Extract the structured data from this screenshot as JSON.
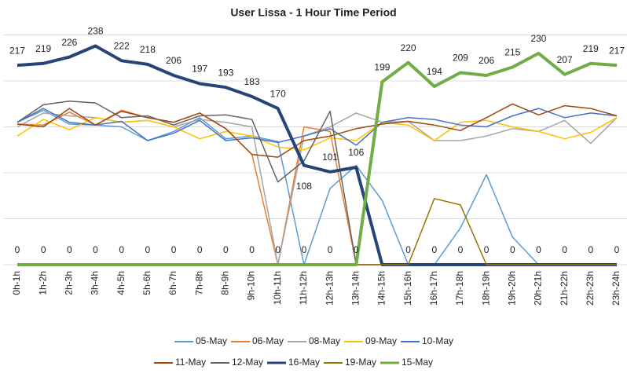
{
  "chart_data": {
    "type": "line",
    "title": "User Lissa - 1 Hour Time Period",
    "categories": [
      "0h-1h",
      "1h-2h",
      "2h-3h",
      "3h-4h",
      "4h-5h",
      "5h-6h",
      "6h-7h",
      "7h-8h",
      "8h-9h",
      "9h-10h",
      "10h-11h",
      "11h-12h",
      "12h-13h",
      "13h-14h",
      "14h-15h",
      "15h-16h",
      "16h-17h",
      "17h-18h",
      "18h-19h",
      "19h-20h",
      "20h-21h",
      "21h-22h",
      "22h-23h",
      "23h-24h"
    ],
    "ylim": [
      0,
      250
    ],
    "yticks": [
      0,
      50,
      100,
      150,
      200,
      250
    ],
    "grid": true,
    "ytick_labels": false,
    "series": [
      {
        "name": "05-May",
        "color": "#5b9bd5",
        "width": 1.5,
        "labels": false,
        "values": [
          155,
          168,
          153,
          152,
          150,
          135,
          145,
          160,
          137,
          140,
          134,
          0,
          83,
          108,
          70,
          0,
          0,
          40,
          98,
          30,
          0,
          0,
          0,
          0
        ]
      },
      {
        "name": "06-May",
        "color": "#ed7d31",
        "width": 1.5,
        "labels": false,
        "values": [
          153,
          152,
          166,
          152,
          168,
          160,
          155,
          165,
          148,
          120,
          0,
          150,
          145,
          0,
          0,
          0,
          0,
          0,
          0,
          0,
          0,
          0,
          0,
          0
        ]
      },
      {
        "name": "08-May",
        "color": "#a5a5a5",
        "width": 1.5,
        "labels": false,
        "values": [
          150,
          165,
          162,
          160,
          155,
          157,
          150,
          158,
          155,
          150,
          0,
          140,
          150,
          165,
          155,
          156,
          135,
          135,
          140,
          148,
          145,
          157,
          132,
          160
        ]
      },
      {
        "name": "09-May",
        "color": "#ffc000",
        "width": 1.5,
        "labels": false,
        "values": [
          140,
          158,
          147,
          160,
          155,
          157,
          150,
          137,
          145,
          140,
          128,
          125,
          138,
          135,
          155,
          152,
          135,
          155,
          157,
          150,
          145,
          137,
          144,
          160
        ]
      },
      {
        "name": "10-May",
        "color": "#4472c4",
        "width": 1.5,
        "labels": false,
        "values": [
          155,
          170,
          155,
          152,
          156,
          135,
          143,
          157,
          135,
          138,
          133,
          140,
          148,
          130,
          155,
          160,
          158,
          152,
          150,
          162,
          170,
          160,
          165,
          162
        ]
      },
      {
        "name": "11-May",
        "color": "#9e480e",
        "width": 1.5,
        "labels": false,
        "values": [
          153,
          150,
          170,
          152,
          167,
          160,
          155,
          165,
          148,
          120,
          117,
          135,
          140,
          148,
          153,
          156,
          152,
          146,
          160,
          175,
          163,
          173,
          170,
          162
        ]
      },
      {
        "name": "12-May",
        "color": "#636363",
        "width": 1.5,
        "labels": false,
        "values": [
          155,
          174,
          178,
          176,
          160,
          162,
          152,
          162,
          163,
          158,
          90,
          113,
          167,
          0,
          0,
          0,
          0,
          0,
          0,
          0,
          0,
          0,
          0,
          0
        ]
      },
      {
        "name": "16-May",
        "color": "#264478",
        "width": 4,
        "labels": "upto13",
        "values": [
          217,
          219,
          226,
          238,
          222,
          218,
          206,
          197,
          193,
          183,
          170,
          108,
          101,
          106,
          0,
          0,
          0,
          0,
          0,
          0,
          0,
          0,
          0,
          0
        ]
      },
      {
        "name": "19-May",
        "color": "#997300",
        "width": 1.5,
        "labels": false,
        "values": [
          0,
          0,
          0,
          0,
          0,
          0,
          0,
          0,
          0,
          0,
          0,
          0,
          0,
          0,
          0,
          0,
          72,
          65,
          0,
          0,
          0,
          0,
          0,
          0
        ]
      },
      {
        "name": "15-May",
        "color": "#70ad47",
        "width": 4,
        "labels": "all",
        "values": [
          0,
          0,
          0,
          0,
          0,
          0,
          0,
          0,
          0,
          0,
          0,
          0,
          0,
          0,
          199,
          220,
          194,
          209,
          206,
          215,
          230,
          207,
          219,
          217
        ]
      }
    ]
  }
}
